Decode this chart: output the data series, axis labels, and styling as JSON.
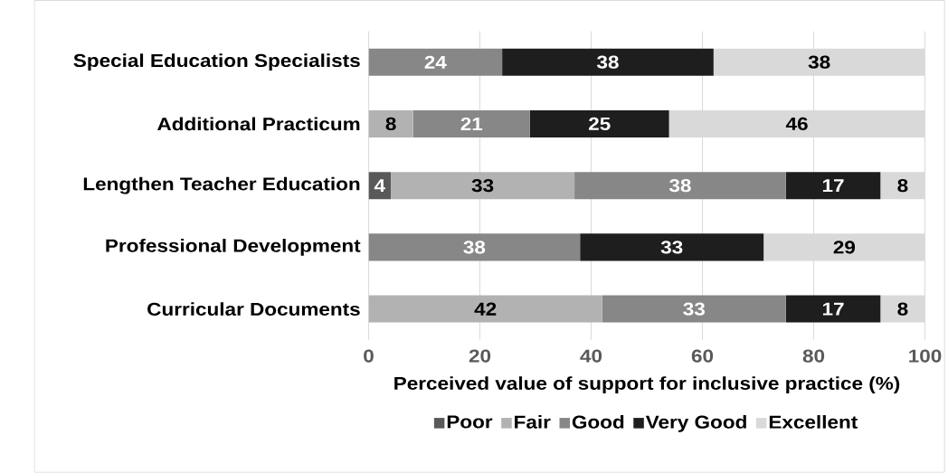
{
  "chart_data": {
    "type": "bar",
    "orientation": "horizontal",
    "stacked": true,
    "xlabel": "Perceived value of support for inclusive practice (%)",
    "categories": [
      "Special Education Specialists",
      "Additional Practicum",
      "Lengthen Teacher Education",
      "Professional Development",
      "Curricular Documents"
    ],
    "series": [
      {
        "name": "Poor",
        "color": "#595959",
        "values": [
          0,
          0,
          4,
          0,
          0
        ],
        "value_labels": [
          null,
          null,
          "4",
          null,
          null
        ]
      },
      {
        "name": "Fair",
        "color": "#b2b2b2",
        "values": [
          0,
          8,
          33,
          0,
          42
        ],
        "value_labels": [
          null,
          "8",
          "33",
          null,
          "42"
        ]
      },
      {
        "name": "Good",
        "color": "#878787",
        "values": [
          24,
          21,
          38,
          38,
          33
        ],
        "value_labels": [
          "24",
          "21",
          "38",
          "38",
          "33"
        ]
      },
      {
        "name": "Very Good",
        "color": "#1e1e1e",
        "values": [
          38,
          25,
          17,
          33,
          17
        ],
        "value_labels": [
          "38",
          "25",
          "17",
          "33",
          "17"
        ]
      },
      {
        "name": "Excellent",
        "color": "#d9d9d9",
        "values": [
          38,
          46,
          8,
          29,
          8
        ],
        "value_labels": [
          "38",
          "46",
          "8",
          "29",
          "8"
        ]
      }
    ],
    "xlim": [
      0,
      100
    ],
    "xticks": [
      0,
      20,
      40,
      60,
      80,
      100
    ],
    "grid": "x",
    "legend": "bottom"
  }
}
